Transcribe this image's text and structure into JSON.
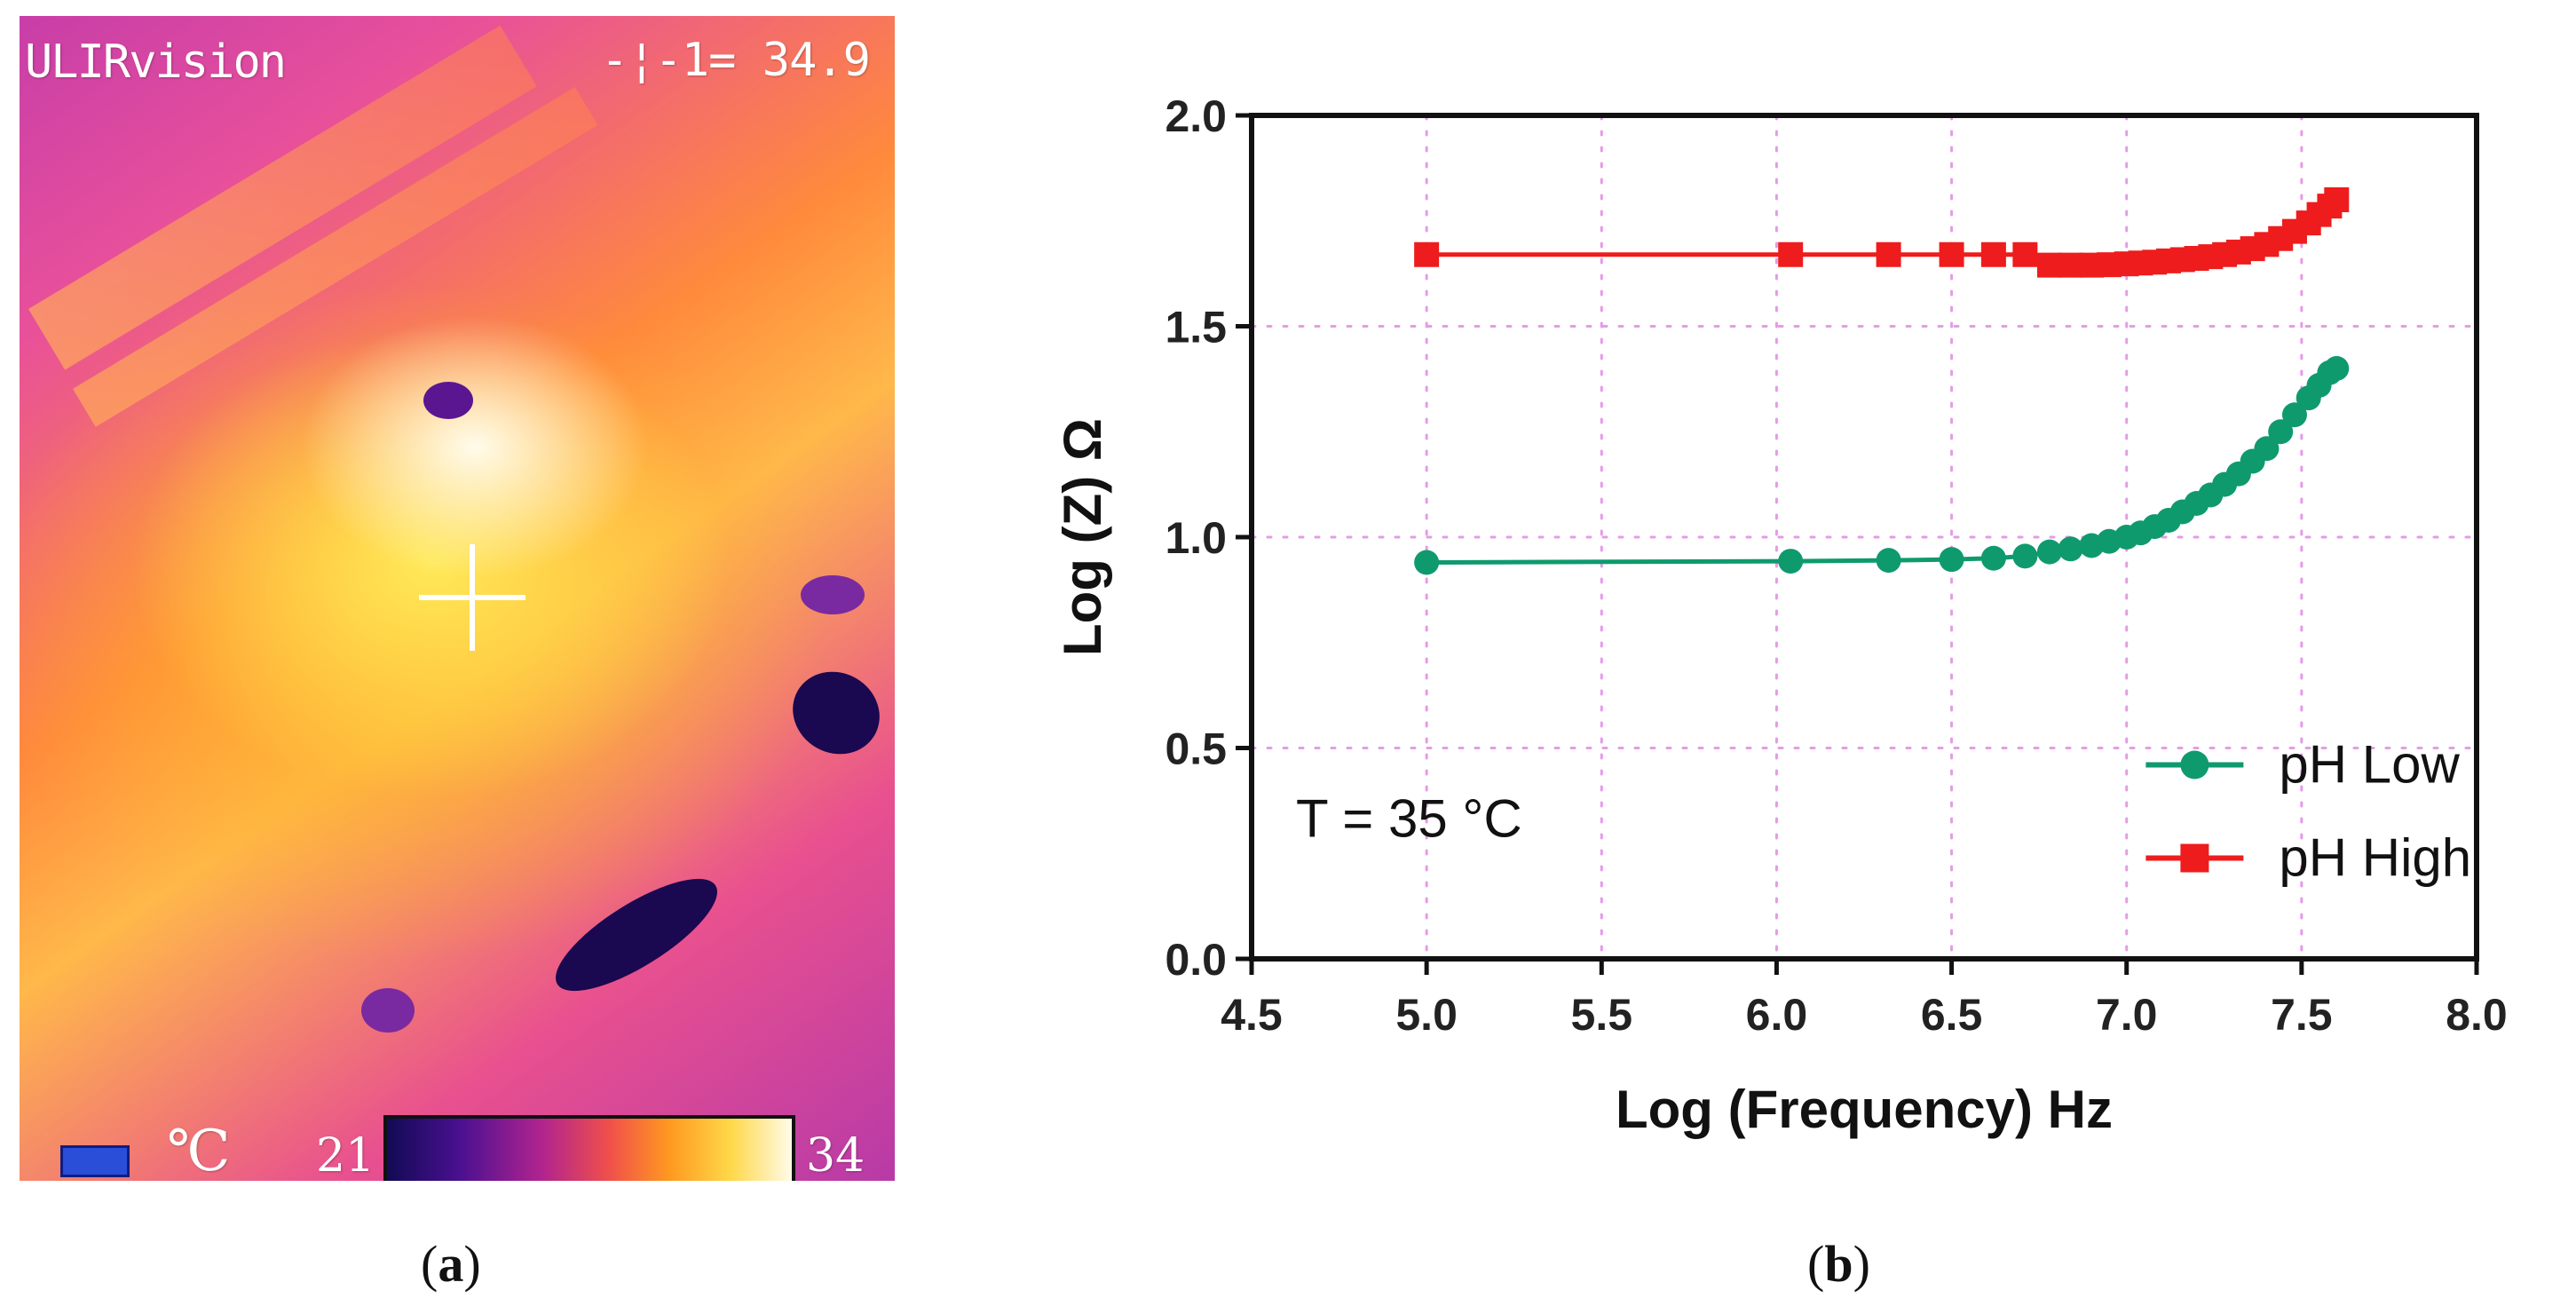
{
  "panel_a": {
    "brand": "ULIRvision",
    "spot_readout": "-¦-1= 34.9",
    "unit": "℃",
    "scale_min": "21",
    "scale_max": "34",
    "caption": "a",
    "colors": {
      "scale": [
        "#120a55",
        "#4a1090",
        "#b0238f",
        "#f0504a",
        "#ff9a20",
        "#ffd84a",
        "#fffbe8"
      ]
    },
    "icons": [
      "battery-icon",
      "crosshair-icon"
    ]
  },
  "panel_b": {
    "caption": "b"
  },
  "chart_data": {
    "type": "line",
    "title": "",
    "xlabel": "Log (Frequency) Hz",
    "ylabel": "Log (Z) Ω",
    "xlim": [
      4.5,
      8.0
    ],
    "ylim": [
      0.0,
      2.0
    ],
    "xticks": [
      "4.5",
      "5.0",
      "5.5",
      "6.0",
      "6.5",
      "7.0",
      "7.5",
      "8.0"
    ],
    "yticks": [
      "0.0",
      "0.5",
      "1.0",
      "1.5",
      "2.0"
    ],
    "grid": true,
    "legend_position": "bottom-right",
    "annotation": "T = 35 °C",
    "series": [
      {
        "name": "pH Low",
        "color": "#0f9a6e",
        "marker": "circle",
        "x": [
          5.0,
          6.04,
          6.32,
          6.5,
          6.62,
          6.71,
          6.78,
          6.84,
          6.9,
          6.95,
          7.0,
          7.04,
          7.08,
          7.12,
          7.16,
          7.2,
          7.24,
          7.28,
          7.32,
          7.36,
          7.4,
          7.44,
          7.48,
          7.52,
          7.55,
          7.58,
          7.6
        ],
        "values": [
          0.94,
          0.943,
          0.945,
          0.947,
          0.95,
          0.955,
          0.965,
          0.972,
          0.98,
          0.99,
          1.0,
          1.01,
          1.025,
          1.04,
          1.06,
          1.08,
          1.1,
          1.125,
          1.15,
          1.18,
          1.21,
          1.25,
          1.29,
          1.33,
          1.36,
          1.39,
          1.4
        ]
      },
      {
        "name": "pH High",
        "color": "#ee1c1c",
        "marker": "square",
        "x": [
          5.0,
          6.04,
          6.32,
          6.5,
          6.62,
          6.71,
          6.78,
          6.84,
          6.9,
          6.95,
          7.0,
          7.04,
          7.08,
          7.12,
          7.16,
          7.2,
          7.24,
          7.28,
          7.32,
          7.36,
          7.4,
          7.44,
          7.48,
          7.52,
          7.55,
          7.58,
          7.6
        ],
        "values": [
          1.67,
          1.67,
          1.67,
          1.67,
          1.67,
          1.67,
          1.645,
          1.645,
          1.645,
          1.646,
          1.648,
          1.65,
          1.652,
          1.655,
          1.658,
          1.661,
          1.665,
          1.67,
          1.676,
          1.684,
          1.694,
          1.708,
          1.725,
          1.745,
          1.765,
          1.785,
          1.8
        ]
      }
    ]
  }
}
